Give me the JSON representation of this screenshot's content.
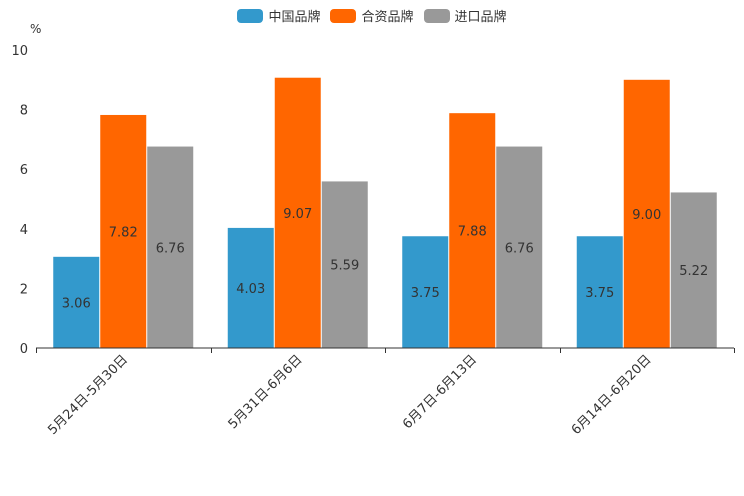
{
  "chart_data": {
    "type": "bar",
    "unit": "%",
    "categories": [
      "5月24日-5月30日",
      "5月31日-6月6日",
      "6月7日-6月13日",
      "6月14日-6月20日"
    ],
    "series": [
      {
        "name": "中国品牌",
        "color": "#3399CC",
        "values": [
          3.06,
          4.03,
          3.75,
          3.75
        ]
      },
      {
        "name": "合资品牌",
        "color": "#FF6600",
        "values": [
          7.82,
          9.07,
          7.88,
          9.0
        ]
      },
      {
        "name": "进口品牌",
        "color": "#999999",
        "values": [
          6.76,
          5.59,
          6.76,
          5.22
        ]
      }
    ],
    "y_ticks": [
      "0",
      "2",
      "4",
      "6",
      "8",
      "10"
    ],
    "ylim": [
      0,
      10
    ],
    "legend_position": "top-center"
  }
}
